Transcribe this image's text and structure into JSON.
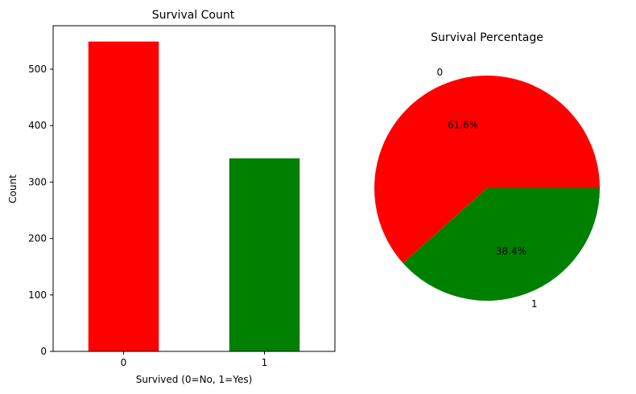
{
  "chart_data": [
    {
      "type": "bar",
      "title": "Survival Count",
      "xlabel": "Survived (0=No, 1=Yes)",
      "ylabel": "Count",
      "categories": [
        "0",
        "1"
      ],
      "values": [
        549,
        342
      ],
      "colors": [
        "#ff0000",
        "#008000"
      ],
      "ylim": [
        0,
        577
      ],
      "yticks": [
        0,
        100,
        200,
        300,
        400,
        500
      ],
      "grid": false
    },
    {
      "type": "pie",
      "title": "Survival Percentage",
      "labels": [
        "0",
        "1"
      ],
      "values": [
        61.6,
        38.4
      ],
      "value_labels": [
        "61.6%",
        "38.4%"
      ],
      "colors": [
        "#ff0000",
        "#008000"
      ]
    }
  ]
}
